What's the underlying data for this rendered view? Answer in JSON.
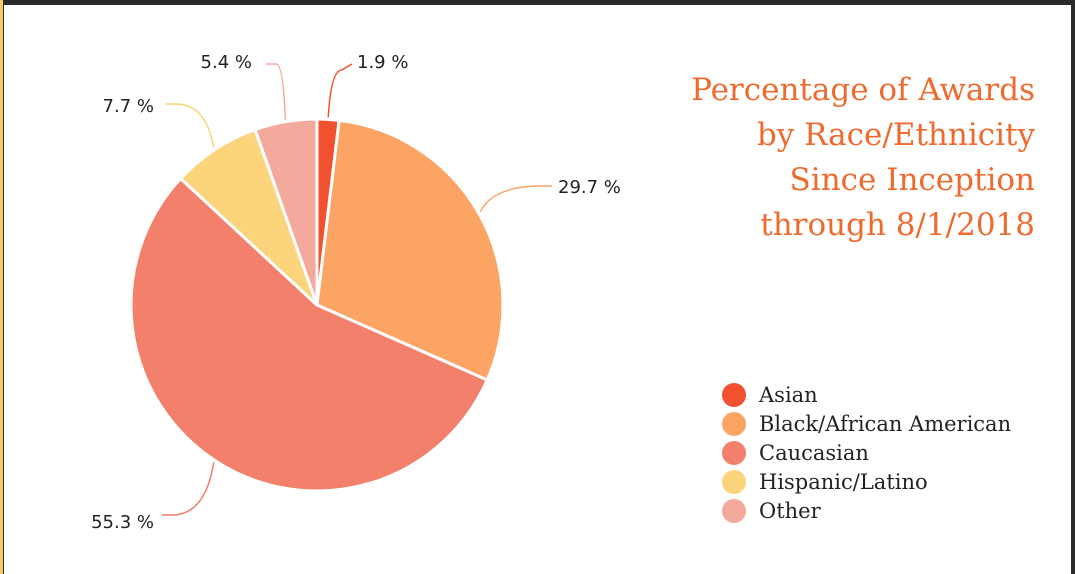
{
  "chart_data": {
    "type": "pie",
    "title_lines": [
      "Percentage of Awards",
      "by Race/Ethnicity",
      "Since Inception",
      "through 8/1/2018"
    ],
    "legend_position": "bottom-right",
    "slices": [
      {
        "name": "Asian",
        "value": 1.9,
        "label": "1.9 %",
        "color": "#f1512e"
      },
      {
        "name": "Black/African American",
        "value": 29.7,
        "label": "29.7 %",
        "color": "#fba464"
      },
      {
        "name": "Caucasian",
        "value": 55.3,
        "label": "55.3 %",
        "color": "#f2806a"
      },
      {
        "name": "Hispanic/Latino",
        "value": 7.7,
        "label": "7.7 %",
        "color": "#fbd47c"
      },
      {
        "name": "Other",
        "value": 5.4,
        "label": "5.4 %",
        "color": "#f3aa9c"
      }
    ]
  }
}
